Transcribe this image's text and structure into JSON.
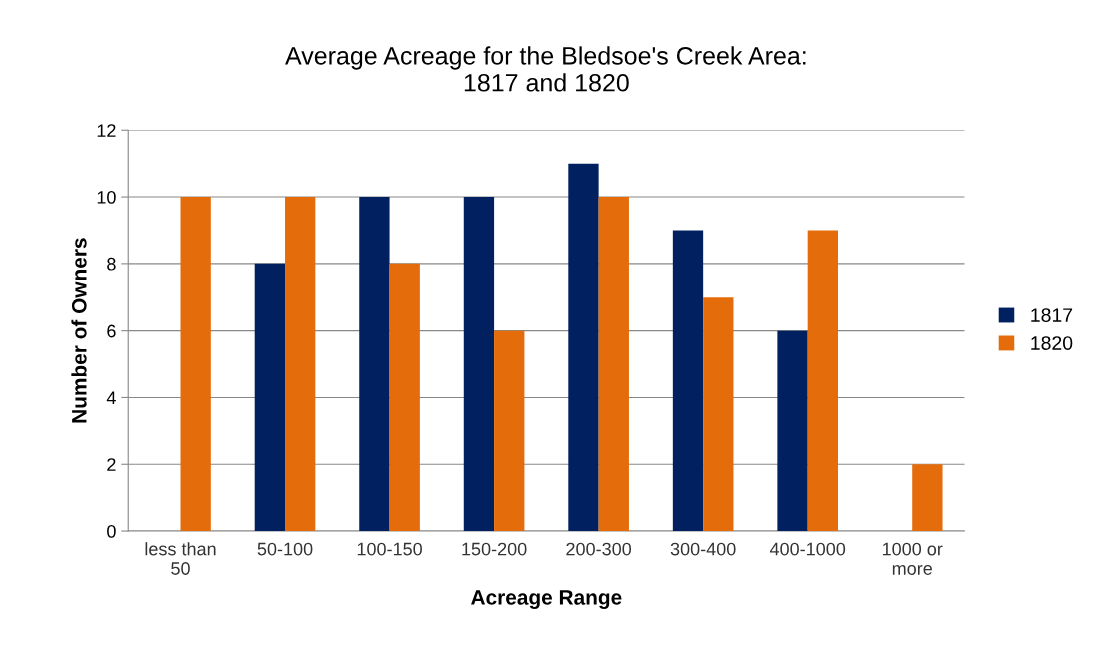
{
  "chart_data": {
    "type": "bar",
    "title": "Average Acreage for the Bledsoe's Creek Area:\n1817 and 1820",
    "xlabel": "Acreage Range",
    "ylabel": "Number of Owners",
    "categories": [
      "less than\n50",
      "50-100",
      "100-150",
      "150-200",
      "200-300",
      "300-400",
      "400-1000",
      "1000 or\nmore"
    ],
    "series": [
      {
        "name": "1817",
        "color": "#002060",
        "values": [
          0,
          8,
          10,
          10,
          11,
          9,
          6,
          0
        ]
      },
      {
        "name": "1820",
        "color": "#e46c0a",
        "values": [
          10,
          10,
          8,
          6,
          10,
          7,
          9,
          2
        ]
      }
    ],
    "ylim": [
      0,
      12
    ],
    "yticks": [
      0,
      2,
      4,
      6,
      8,
      10,
      12
    ],
    "grid": "y",
    "legend": "right"
  }
}
